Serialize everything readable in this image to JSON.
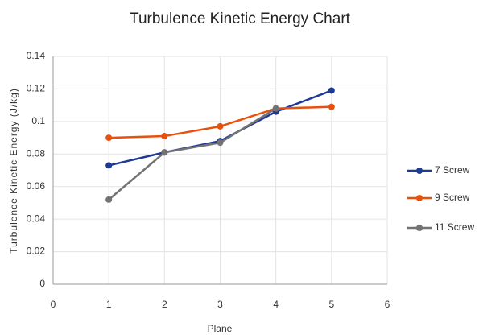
{
  "chart_data": {
    "type": "line",
    "title": "Turbulence Kinetic Energy Chart",
    "xlabel": "Plane",
    "ylabel": "Turbulence Kinetic Energy (J/kg)",
    "x": [
      1,
      2,
      3,
      4,
      5
    ],
    "series": [
      {
        "name": "7 Screw",
        "color": "#1f3a93",
        "values": [
          0.073,
          0.081,
          0.088,
          0.106,
          0.119
        ]
      },
      {
        "name": "9 Screw",
        "color": "#e8500e",
        "values": [
          0.09,
          0.091,
          0.097,
          0.108,
          0.109
        ]
      },
      {
        "name": "11 Screw",
        "color": "#737373",
        "values": [
          0.052,
          0.081,
          0.087,
          0.108,
          null
        ]
      }
    ],
    "xlim": [
      0,
      6
    ],
    "xticks": [
      0,
      1,
      2,
      3,
      4,
      5,
      6
    ],
    "ylim": [
      0,
      0.14
    ],
    "yticks": [
      0,
      0.02,
      0.04,
      0.06,
      0.08,
      0.1,
      0.12,
      0.14
    ],
    "grid": true,
    "legend": "right"
  }
}
